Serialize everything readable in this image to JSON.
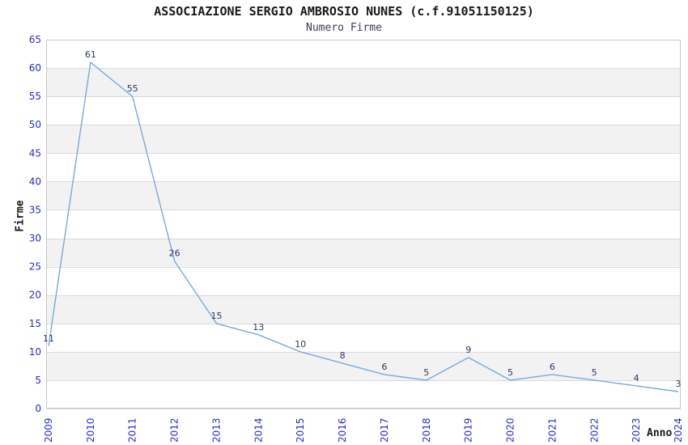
{
  "chart_data": {
    "type": "line",
    "title": "ASSOCIAZIONE SERGIO AMBROSIO NUNES (c.f.91051150125)",
    "subtitle": "Numero Firme",
    "xlabel": "Anno",
    "ylabel": "Firme",
    "categories": [
      "2009",
      "2010",
      "2011",
      "2012",
      "2013",
      "2014",
      "2015",
      "2016",
      "2017",
      "2018",
      "2019",
      "2020",
      "2021",
      "2022",
      "2023",
      "2024"
    ],
    "values": [
      11,
      61,
      55,
      26,
      15,
      13,
      10,
      8,
      6,
      5,
      9,
      5,
      6,
      5,
      4,
      3
    ],
    "ylim": [
      0,
      65
    ],
    "ytick_step": 5,
    "grid": true,
    "banding": "alternating 5-unit horizontal bands, gray on 5-10,15-20,25-30,35-40,45-50,55-60",
    "legend": "none",
    "point_labels_visible": true,
    "colors": {
      "line": "#79aadd",
      "tick_labels": "#2a2ad0",
      "point_labels": "#333366",
      "band_fill": "#f2f2f2",
      "gridline": "#dcdcdc",
      "plot_border": "#c8c8c8",
      "title": "#1a1a1a",
      "subtitle": "#3a3a5e",
      "axis_title": "#1a1a1a",
      "background": "#ffffff"
    }
  }
}
